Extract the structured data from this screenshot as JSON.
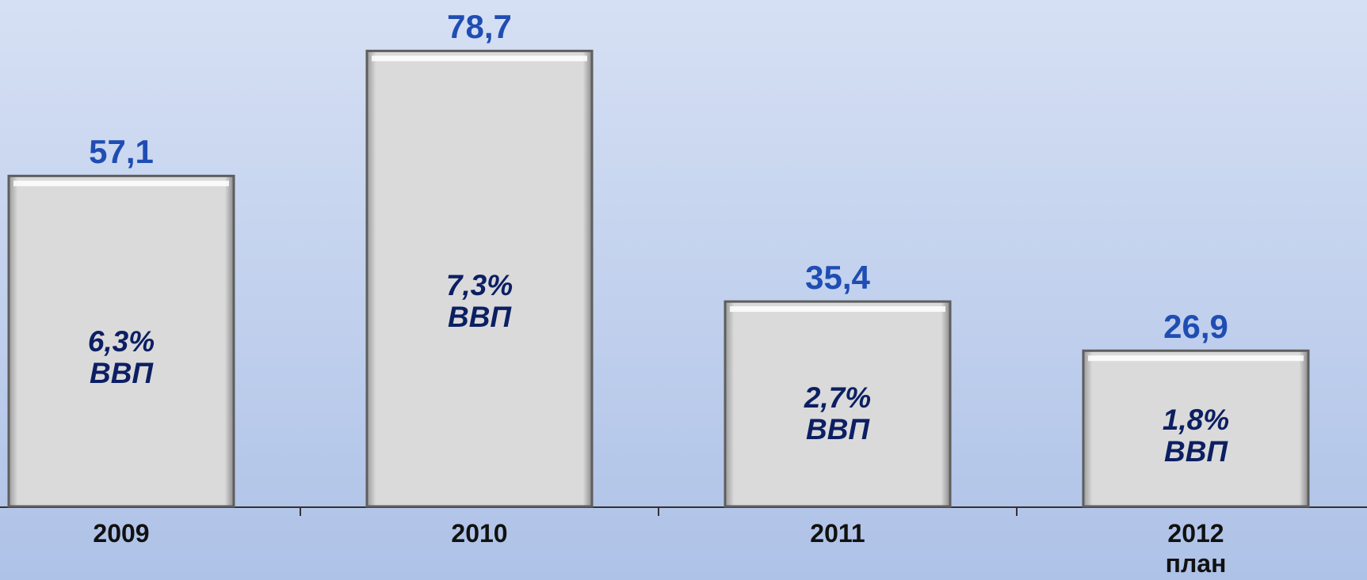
{
  "chart_data": {
    "type": "bar",
    "categories": [
      "2009",
      "2010",
      "2011",
      "2012\nплан"
    ],
    "values": [
      57.1,
      78.7,
      35.4,
      26.9
    ],
    "value_labels": [
      "57,1",
      "78,7",
      "35,4",
      "26,9"
    ],
    "bar_labels": [
      "6,3%\nВВП",
      "7,3%\nВВП",
      "2,7%\nВВП",
      "1,8%\nВВП"
    ],
    "color": "#dadada",
    "ylim": [
      0,
      87.5
    ]
  }
}
